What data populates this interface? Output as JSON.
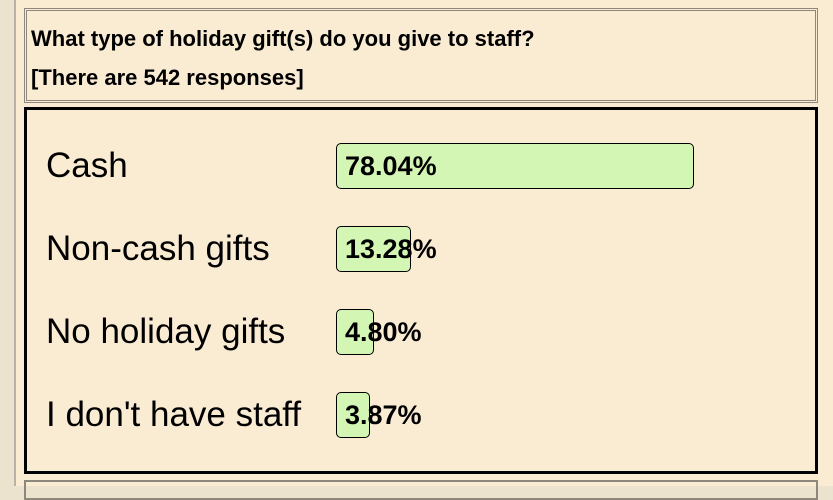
{
  "chart_data": {
    "type": "bar",
    "orientation": "horizontal",
    "title": "What type of holiday gift(s) do you give to staff?",
    "subtitle": "[There are 542 responses]",
    "categories": [
      "Cash",
      "Non-cash gifts",
      "No holiday gifts",
      "I don't have staff"
    ],
    "values": [
      78.04,
      13.28,
      4.8,
      3.87
    ],
    "value_labels": [
      "78.04%",
      "13.28%",
      "4.80%",
      "3.87%"
    ],
    "color": "#d4f6b4"
  }
}
